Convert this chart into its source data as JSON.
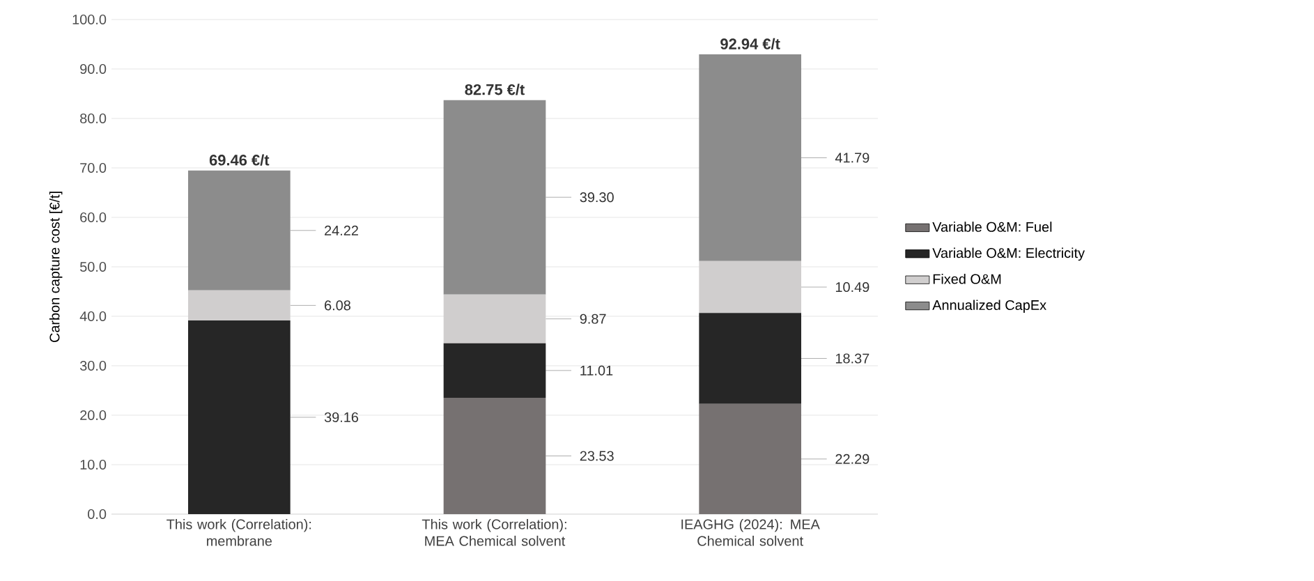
{
  "chart_data": {
    "type": "bar",
    "stacked": true,
    "categories": [
      "This work (Correlation): membrane",
      "This work (Correlation): MEA Chemical solvent",
      "IEAGHG (2024): MEA Chemical solvent"
    ],
    "ylabel": "Carbon capture cost [€/t]",
    "series": [
      {
        "name": "Variable O&M: Fuel",
        "color": "#767171",
        "values": [
          0,
          23.53,
          22.29
        ],
        "value_labels": [
          null,
          "23.53",
          "22.29"
        ]
      },
      {
        "name": "Variable O&M: Electricity",
        "color": "#262626",
        "values": [
          39.16,
          11.01,
          18.37
        ],
        "value_labels": [
          "39.16",
          "11.01",
          "18.37"
        ]
      },
      {
        "name": "Fixed O&M",
        "color": "#d0cece",
        "values": [
          6.08,
          9.87,
          10.49
        ],
        "value_labels": [
          "6.08",
          "9.87",
          "10.49"
        ]
      },
      {
        "name": "Annualized CapEx",
        "color": "#8c8c8c",
        "values": [
          24.22,
          39.3,
          41.79
        ],
        "value_labels": [
          "24.22",
          "39.30",
          "41.79"
        ]
      }
    ],
    "annotations": [
      "69.46 €/t",
      "82.75 €/t",
      "92.94 €/t"
    ],
    "ylim": [
      0,
      100
    ],
    "yticks": [
      {
        "value": 0,
        "label": "0.0"
      },
      {
        "value": 10,
        "label": "10.0"
      },
      {
        "value": 20,
        "label": "20.0"
      },
      {
        "value": 30,
        "label": "30.0"
      },
      {
        "value": 40,
        "label": "40.0"
      },
      {
        "value": 50,
        "label": "50.0"
      },
      {
        "value": 60,
        "label": "60.0"
      },
      {
        "value": 70,
        "label": "70.0"
      },
      {
        "value": 80,
        "label": "80.0"
      },
      {
        "value": 90,
        "label": "90.0"
      },
      {
        "value": 100,
        "label": "100.0"
      }
    ],
    "grid": "y",
    "legend": "right"
  }
}
